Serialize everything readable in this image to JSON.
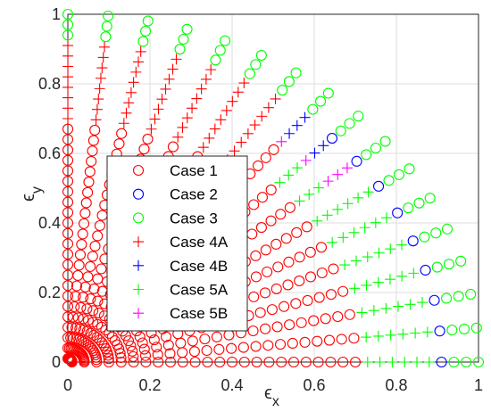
{
  "chart_data": {
    "type": "scatter",
    "title": "",
    "xlabel": "ϵ",
    "xlabel_sub": "x",
    "ylabel": "ϵ",
    "ylabel_sub": "y",
    "xlim": [
      0,
      1
    ],
    "ylim": [
      0,
      1
    ],
    "xticks": [
      0,
      0.2,
      0.4,
      0.6,
      0.8,
      1
    ],
    "yticks": [
      0,
      0.2,
      0.4,
      0.6,
      0.8,
      1
    ],
    "xtick_labels": [
      "0",
      "0.2",
      "0.4",
      "0.6",
      "0.8",
      "1"
    ],
    "ytick_labels": [
      "0",
      "0.2",
      "0.4",
      "0.6",
      "0.8",
      "1"
    ],
    "grid": true,
    "legend_position": "left",
    "sampling": {
      "radii_from": 0.01,
      "radii_to": 1.0,
      "radii_count": 34,
      "angles_per_quarter_circle": 16
    },
    "series": [
      {
        "name": "Case 1",
        "marker": "circle",
        "color": "#ff0000"
      },
      {
        "name": "Case 2",
        "marker": "circle",
        "color": "#0000ff"
      },
      {
        "name": "Case 3",
        "marker": "circle",
        "color": "#00ff00"
      },
      {
        "name": "Case 4A",
        "marker": "plus",
        "color": "#ff0000"
      },
      {
        "name": "Case 4B",
        "marker": "plus",
        "color": "#0000ff"
      },
      {
        "name": "Case 5A",
        "marker": "plus",
        "color": "#00ff00"
      },
      {
        "name": "Case 5B",
        "marker": "plus",
        "color": "#ff00ff"
      }
    ],
    "regions": [
      {
        "series": "Case 3",
        "r_min": 0.935
      },
      {
        "series": "Case 4A",
        "r_min": 0.7,
        "angle_min_deg": 55
      },
      {
        "series": "Case 2",
        "r_min": 0.89,
        "angle_max_deg": 48
      },
      {
        "series": "Case 4B",
        "r_min": 0.845,
        "angle_min_deg": 43
      },
      {
        "series": "Case 5B",
        "r_min": 0.8,
        "angle_min_deg": 39
      },
      {
        "series": "Case 5A",
        "r_min": 0.72,
        "angle_max_deg": 48
      },
      {
        "series": "Case 1",
        "r_min": 0
      }
    ]
  }
}
